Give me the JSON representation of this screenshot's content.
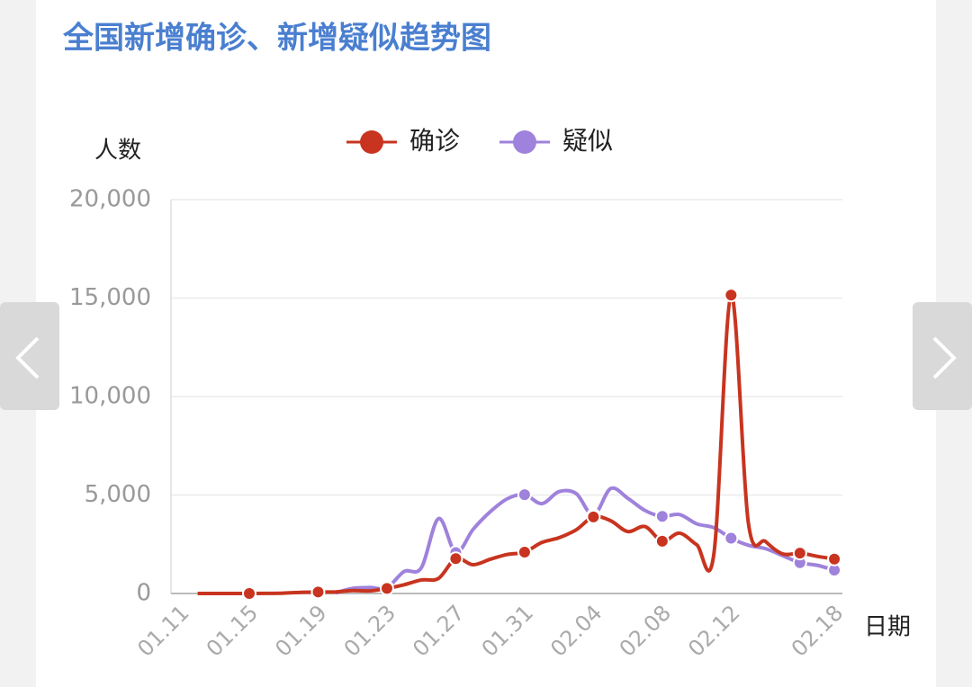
{
  "chart_data": {
    "type": "line",
    "title": "全国新增确诊、新增疑似趋势图",
    "y_label": "人数",
    "x_label": "日期",
    "categories": [
      "01.11",
      null,
      null,
      null,
      "01.15",
      null,
      null,
      null,
      "01.19",
      null,
      null,
      null,
      "01.23",
      null,
      null,
      null,
      "01.27",
      null,
      null,
      null,
      "01.31",
      null,
      null,
      null,
      "02.04",
      null,
      null,
      null,
      "02.08",
      null,
      null,
      null,
      "02.12",
      null,
      null,
      null,
      null,
      null,
      "02.18"
    ],
    "series": [
      {
        "name": "确诊",
        "color": "#c8341f",
        "values": [
          null,
          0,
          1,
          0,
          0,
          4,
          17,
          59,
          77,
          77,
          149,
          131,
          259,
          444,
          688,
          769,
          1771,
          1459,
          1737,
          1982,
          2102,
          2590,
          2829,
          3235,
          3887,
          3694,
          3143,
          3399,
          2656,
          3062,
          2478,
          2015,
          15152,
          3600,
          2641,
          2009,
          2048,
          1886,
          1749
        ]
      },
      {
        "name": "疑似",
        "color": "#9f82db",
        "values": [
          null,
          null,
          null,
          null,
          null,
          null,
          null,
          null,
          null,
          27,
          257,
          300,
          300,
          1118,
          1309,
          3806,
          2077,
          3248,
          4148,
          4812,
          5019,
          4562,
          5173,
          5072,
          3971,
          5328,
          4833,
          4214,
          3916,
          4008,
          3536,
          3342,
          2807,
          2450,
          2277,
          1918,
          1563,
          1432,
          1185
        ]
      }
    ],
    "ylim": [
      0,
      20000
    ],
    "yticks": [
      0,
      {
        "value": 5000,
        "label": "5,000"
      },
      {
        "value": 10000,
        "label": "10,000"
      },
      {
        "value": 15000,
        "label": "15,000"
      },
      {
        "value": 20000,
        "label": "20,000"
      }
    ],
    "grid": true
  }
}
